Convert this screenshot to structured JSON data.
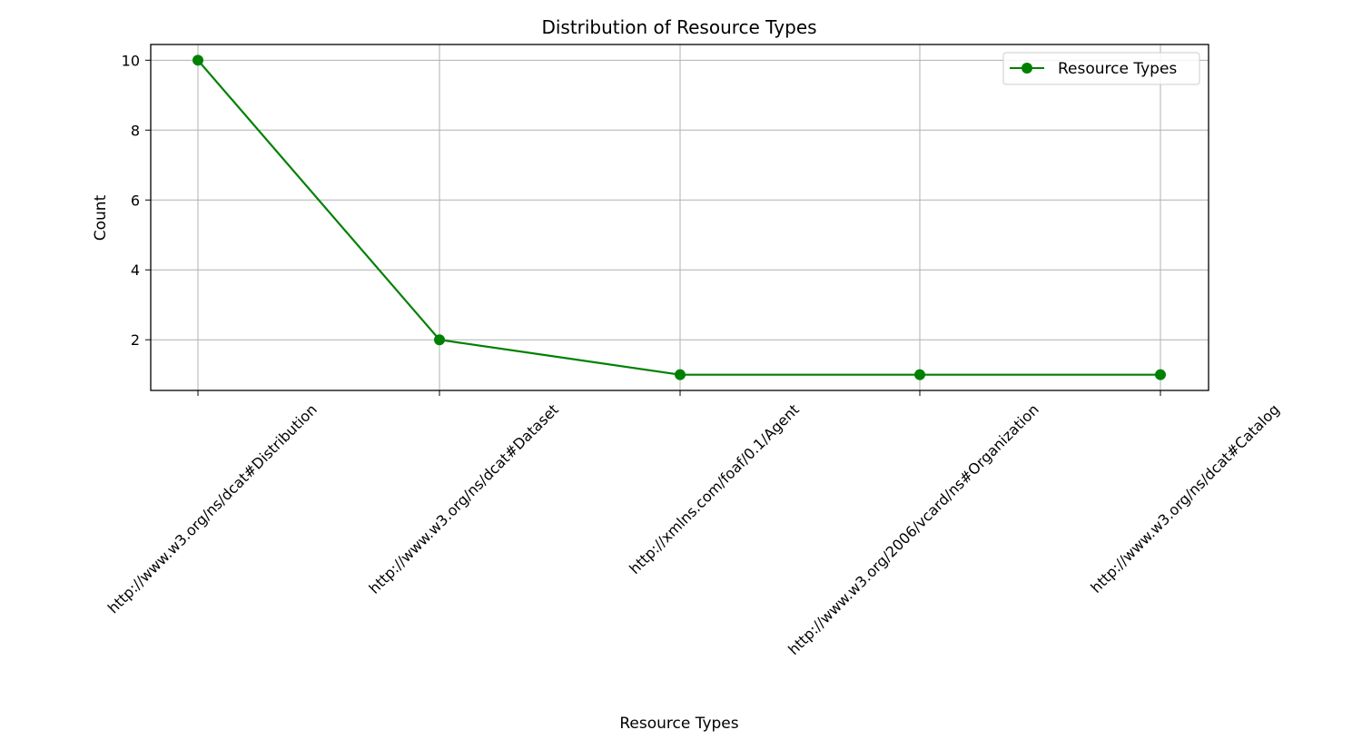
{
  "chart_data": {
    "type": "line",
    "title": "Distribution of Resource Types",
    "xlabel": "Resource Types",
    "ylabel": "Count",
    "categories": [
      "http://www.w3.org/ns/dcat#Distribution",
      "http://www.w3.org/ns/dcat#Dataset",
      "http://xmlns.com/foaf/0.1/Agent",
      "http://www.w3.org/2006/vcard/ns#Organization",
      "http://www.w3.org/ns/dcat#Catalog"
    ],
    "series": [
      {
        "name": "Resource Types",
        "values": [
          10,
          2,
          1,
          1,
          1
        ],
        "color": "#008000",
        "marker": "circle"
      }
    ],
    "ylim": [
      0.55,
      10.45
    ],
    "yticks": [
      2,
      4,
      6,
      8,
      10
    ],
    "grid": true,
    "legend_position": "top-right"
  }
}
